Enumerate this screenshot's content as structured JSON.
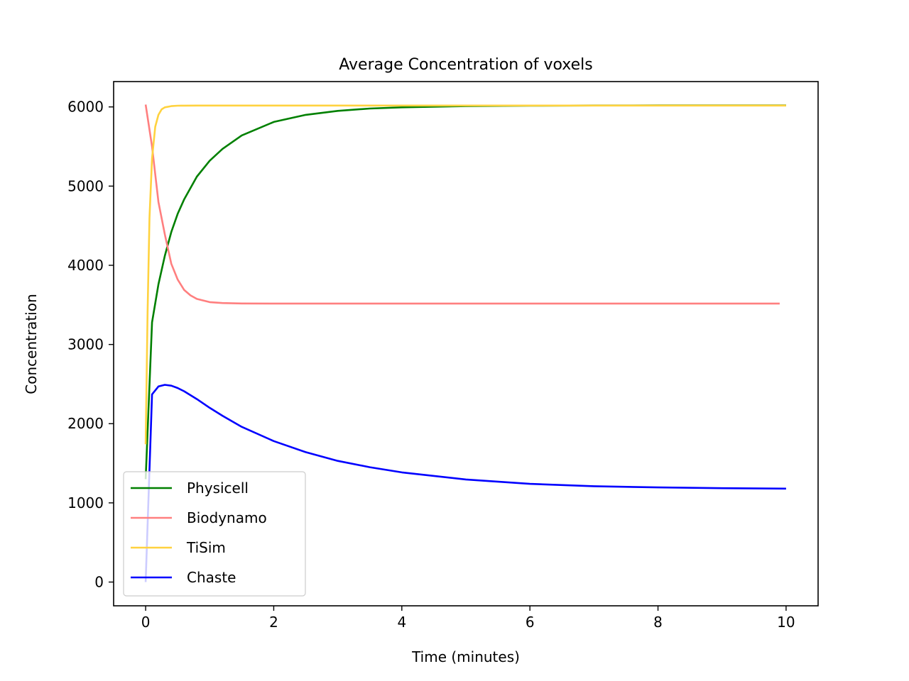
{
  "chart_data": {
    "type": "line",
    "title": "Average Concentration of voxels",
    "xlabel": "Time (minutes)",
    "ylabel": "Concentration",
    "xlim": [
      -0.5,
      10.5
    ],
    "ylim": [
      -300,
      6320
    ],
    "xticks": [
      0,
      2,
      4,
      6,
      8,
      10
    ],
    "yticks": [
      0,
      1000,
      2000,
      3000,
      4000,
      5000,
      6000
    ],
    "grid": false,
    "legend_position": "lower-left",
    "series": [
      {
        "name": "Physicell",
        "color": "#008000",
        "x": [
          0.0,
          0.1,
          0.2,
          0.3,
          0.4,
          0.5,
          0.6,
          0.8,
          1.0,
          1.2,
          1.5,
          2.0,
          2.5,
          3.0,
          3.5,
          4.0,
          5.0,
          6.0,
          7.0,
          8.0,
          9.0,
          10.0
        ],
        "y": [
          1300,
          3280,
          3760,
          4120,
          4420,
          4650,
          4830,
          5120,
          5320,
          5470,
          5640,
          5810,
          5900,
          5950,
          5980,
          5995,
          6010,
          6015,
          6018,
          6019,
          6020,
          6020
        ]
      },
      {
        "name": "Biodynamo",
        "color": "#ff7f7f",
        "x": [
          0.0,
          0.1,
          0.2,
          0.3,
          0.4,
          0.5,
          0.6,
          0.7,
          0.8,
          1.0,
          1.2,
          1.5,
          2.0,
          3.0,
          5.0,
          7.0,
          9.9
        ],
        "y": [
          6030,
          5500,
          4800,
          4390,
          4020,
          3820,
          3690,
          3620,
          3575,
          3535,
          3523,
          3518,
          3517,
          3517,
          3517,
          3517,
          3517
        ]
      },
      {
        "name": "TiSim",
        "color": "#ffd23f",
        "x": [
          0.0,
          0.03,
          0.06,
          0.1,
          0.15,
          0.2,
          0.25,
          0.3,
          0.4,
          0.5,
          0.6,
          0.8,
          1.0,
          2.0,
          4.0,
          6.0,
          8.0,
          10.0
        ],
        "y": [
          1740,
          3400,
          4600,
          5350,
          5750,
          5900,
          5970,
          5995,
          6010,
          6015,
          6016,
          6017,
          6017,
          6017,
          6017,
          6017,
          6017,
          6017
        ]
      },
      {
        "name": "Chaste",
        "color": "#0000ff",
        "x": [
          0.0,
          0.1,
          0.2,
          0.3,
          0.4,
          0.5,
          0.6,
          0.8,
          1.0,
          1.2,
          1.5,
          2.0,
          2.5,
          3.0,
          3.5,
          4.0,
          5.0,
          6.0,
          7.0,
          8.0,
          9.0,
          10.0
        ],
        "y": [
          0,
          2370,
          2470,
          2490,
          2480,
          2450,
          2410,
          2310,
          2200,
          2100,
          1960,
          1780,
          1640,
          1530,
          1450,
          1385,
          1295,
          1240,
          1210,
          1195,
          1185,
          1180
        ]
      }
    ]
  }
}
